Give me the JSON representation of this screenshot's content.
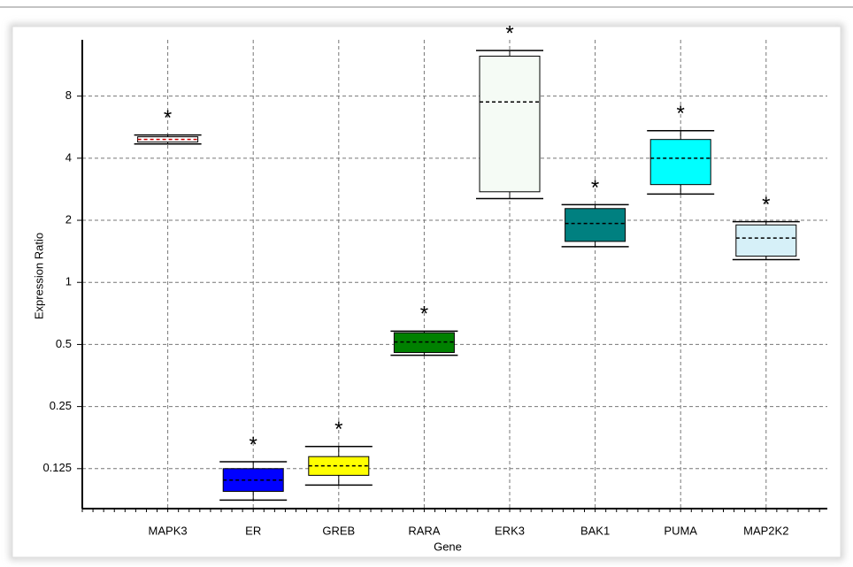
{
  "chart_data": {
    "type": "box",
    "xlabel": "Gene",
    "ylabel": "Expression Ratio",
    "categories": [
      "MAPK3",
      "ER",
      "GREB",
      "RARA",
      "ERK3",
      "BAK1",
      "PUMA",
      "MAP2K2"
    ],
    "min": [
      4.69,
      0.088,
      0.104,
      0.443,
      2.55,
      1.49,
      2.68,
      1.29
    ],
    "q1": [
      4.79,
      0.097,
      0.116,
      0.457,
      2.75,
      1.58,
      2.98,
      1.34
    ],
    "median": [
      4.93,
      0.11,
      0.129,
      0.514,
      7.5,
      1.93,
      4.0,
      1.64
    ],
    "q3": [
      5.08,
      0.125,
      0.143,
      0.57,
      12.5,
      2.28,
      4.93,
      1.9
    ],
    "max": [
      5.18,
      0.135,
      0.16,
      0.58,
      13.3,
      2.38,
      5.44,
      1.97
    ],
    "colors": [
      "#ffffff",
      "#0000ff",
      "#ffff00",
      "#008000",
      "#f5fbf5",
      "#008080",
      "#00ffff",
      "#d6f0f8"
    ],
    "median_colors": [
      "#cc0000",
      "#000000",
      "#000000",
      "#000000",
      "#000000",
      "#000000",
      "#000000",
      "#000000"
    ],
    "annotations": [
      "*",
      "*",
      "*",
      "*",
      "*",
      "*",
      "*",
      "*"
    ],
    "yscale": "log",
    "log_base": 2,
    "ylim": [
      0.08,
      15
    ],
    "yticks": [
      0.125,
      0.25,
      0.5,
      1,
      2,
      4,
      8
    ],
    "grid": true
  }
}
